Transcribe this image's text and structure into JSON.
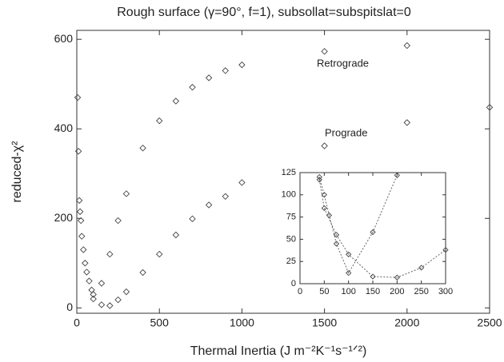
{
  "chart_data": [
    {
      "type": "scatter",
      "title": "Rough surface (γ=90°, f=1), subsollat=subspitslat=0",
      "xlabel": "Thermal Inertia (J m⁻²K⁻¹s⁻¹ᐟ²)",
      "ylabel": "reduced-χ²",
      "xlim": [
        0,
        2500
      ],
      "ylim": [
        -12,
        620
      ],
      "xticks": [
        0,
        500,
        1000,
        1500,
        2000,
        2500
      ],
      "yticks": [
        0,
        200,
        400,
        600
      ],
      "series": [
        {
          "name": "Retrograde",
          "color": "#444444",
          "x": [
            5,
            10,
            100,
            150,
            200,
            250,
            300,
            400,
            500,
            600,
            700,
            800,
            900,
            1000,
            1500,
            2000,
            2500
          ],
          "values": [
            470,
            350,
            30,
            55,
            120,
            195,
            255,
            357,
            418,
            462,
            493,
            514,
            530,
            543,
            573,
            586,
            448
          ]
        },
        {
          "name": "Prograde",
          "color": "#444444",
          "x": [
            15,
            20,
            25,
            30,
            40,
            50,
            60,
            75,
            90,
            100,
            150,
            200,
            250,
            300,
            400,
            500,
            600,
            700,
            800,
            900,
            1000,
            1500,
            2000
          ],
          "values": [
            240,
            215,
            195,
            160,
            130,
            100,
            80,
            60,
            40,
            20,
            7,
            5,
            18,
            36,
            79,
            120,
            163,
            199,
            230,
            249,
            280,
            362,
            414
          ]
        }
      ]
    },
    {
      "type": "line",
      "xlim": [
        0,
        300
      ],
      "ylim": [
        0,
        125
      ],
      "xticks": [
        0,
        50,
        100,
        150,
        200,
        250,
        300
      ],
      "yticks": [
        0,
        25,
        50,
        75,
        100,
        125
      ],
      "series": [
        {
          "color": "#444444",
          "x": [
            40,
            50,
            60,
            75,
            100,
            150,
            200
          ],
          "values": [
            120,
            100,
            77,
            45,
            12,
            58,
            122
          ]
        },
        {
          "color": "#444444",
          "x": [
            40,
            50,
            75,
            100,
            150,
            200,
            250,
            300
          ],
          "values": [
            117,
            85,
            55,
            33,
            8,
            7,
            18,
            38
          ]
        }
      ]
    }
  ]
}
